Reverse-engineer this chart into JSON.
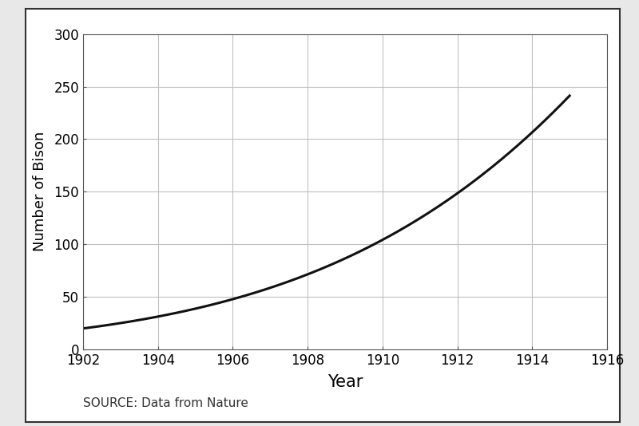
{
  "xlabel": "Year",
  "ylabel": "Number of Bison",
  "source_text": "SOURCE: Data from Nature",
  "xlim": [
    1902,
    1916
  ],
  "ylim": [
    0,
    300
  ],
  "xticks": [
    1902,
    1904,
    1906,
    1908,
    1910,
    1912,
    1914,
    1916
  ],
  "yticks": [
    0,
    50,
    100,
    150,
    200,
    250,
    300
  ],
  "data_points": {
    "years": [
      1902,
      1903,
      1904,
      1905,
      1906,
      1907,
      1908,
      1909,
      1910,
      1911,
      1912,
      1913,
      1914,
      1915
    ],
    "bison": [
      20,
      23,
      32,
      40,
      50,
      62,
      70,
      84,
      100,
      120,
      150,
      180,
      200,
      250
    ]
  },
  "line_color": "#111111",
  "line_width": 2.2,
  "outer_bg_color": "#e8e8e8",
  "inner_bg_color": "#ffffff",
  "grid_color": "#c0c0c0",
  "border_color": "#333333",
  "xlabel_fontsize": 15,
  "ylabel_fontsize": 13,
  "tick_fontsize": 12,
  "source_fontsize": 11
}
